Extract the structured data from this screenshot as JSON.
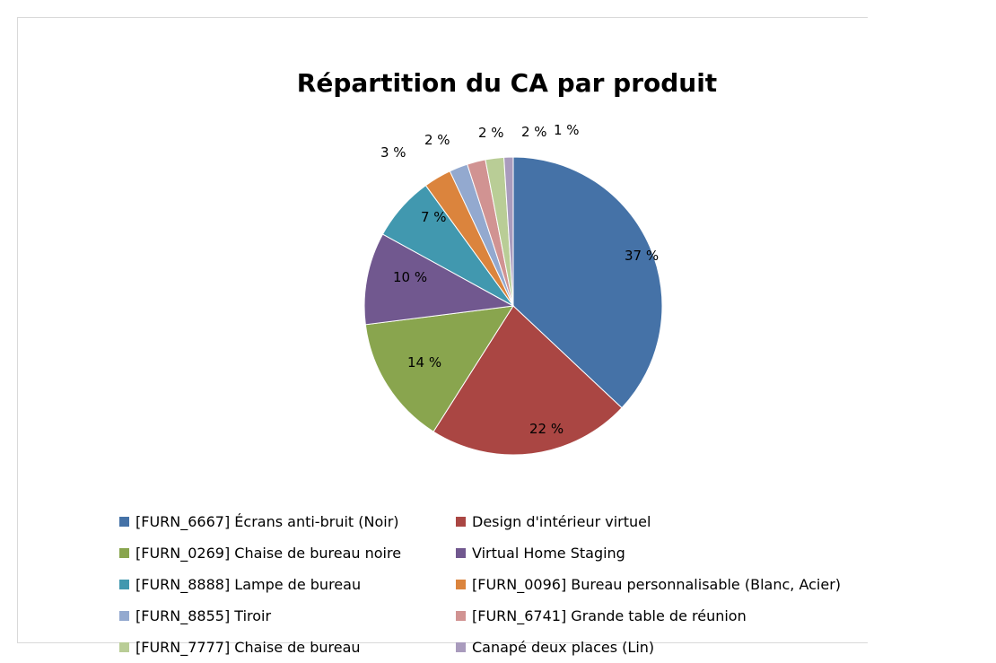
{
  "chart_data": {
    "type": "pie",
    "title": "Répartition du CA par produit",
    "categories": [
      "[FURN_6667] Écrans anti-bruit (Noir)",
      "Design d'intérieur virtuel",
      "[FURN_0269] Chaise de bureau noire",
      "Virtual Home Staging",
      "[FURN_8888] Lampe de bureau",
      "[FURN_0096] Bureau personnalisable (Blanc, Acier)",
      "[FURN_8855] Tiroir",
      "[FURN_6741] Grande table de réunion",
      "[FURN_7777] Chaise de bureau",
      "Canapé deux places (Lin)"
    ],
    "values": [
      37,
      22,
      14,
      10,
      7,
      3,
      2,
      2,
      2,
      1
    ],
    "labels": [
      "37 %",
      "22 %",
      "14 %",
      "10 %",
      "7 %",
      "3 %",
      "2 %",
      "2 %",
      "2 %",
      "1 %"
    ],
    "colors": [
      "#4572A7",
      "#AA4643",
      "#89A54E",
      "#71588F",
      "#4198AF",
      "#DB843D",
      "#93A9CF",
      "#D19392",
      "#B9CD96",
      "#A99BBD"
    ],
    "legend_position": "bottom"
  }
}
